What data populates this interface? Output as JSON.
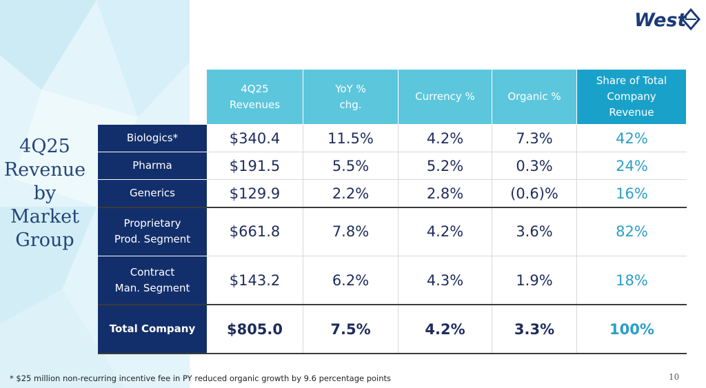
{
  "title_lines": [
    "4Q25",
    "Revenue",
    "by",
    "Market",
    "Group"
  ],
  "logo": "West",
  "table": {
    "header": [
      "4Q25\nRevenues",
      "YoY %\nchg.",
      "Currency %",
      "Organic %",
      "Share of Total\nCompany\nRevenue"
    ],
    "rows": [
      [
        "Biologics*",
        "$340.4",
        "11.5%",
        "4.2%",
        "7.3%",
        "42%"
      ],
      [
        "Pharma",
        "$191.5",
        "5.5%",
        "5.2%",
        "0.3%",
        "24%"
      ],
      [
        "Generics",
        "$129.9",
        "2.2%",
        "2.8%",
        "(0.6)%",
        "16%"
      ],
      [
        "Proprietary\nProd. Segment",
        "$661.8",
        "7.8%",
        "4.2%",
        "3.6%",
        "82%"
      ],
      [
        "Contract\nMan. Segment",
        "$143.2",
        "6.2%",
        "4.3%",
        "1.9%",
        "18%"
      ],
      [
        "Total Company",
        "$805.0",
        "7.5%",
        "4.2%",
        "3.3%",
        "100%"
      ]
    ]
  },
  "footnote": "* $25 million non-recurring incentive fee in PY reduced organic growth by 9.6 percentage points",
  "page_number": "10"
}
